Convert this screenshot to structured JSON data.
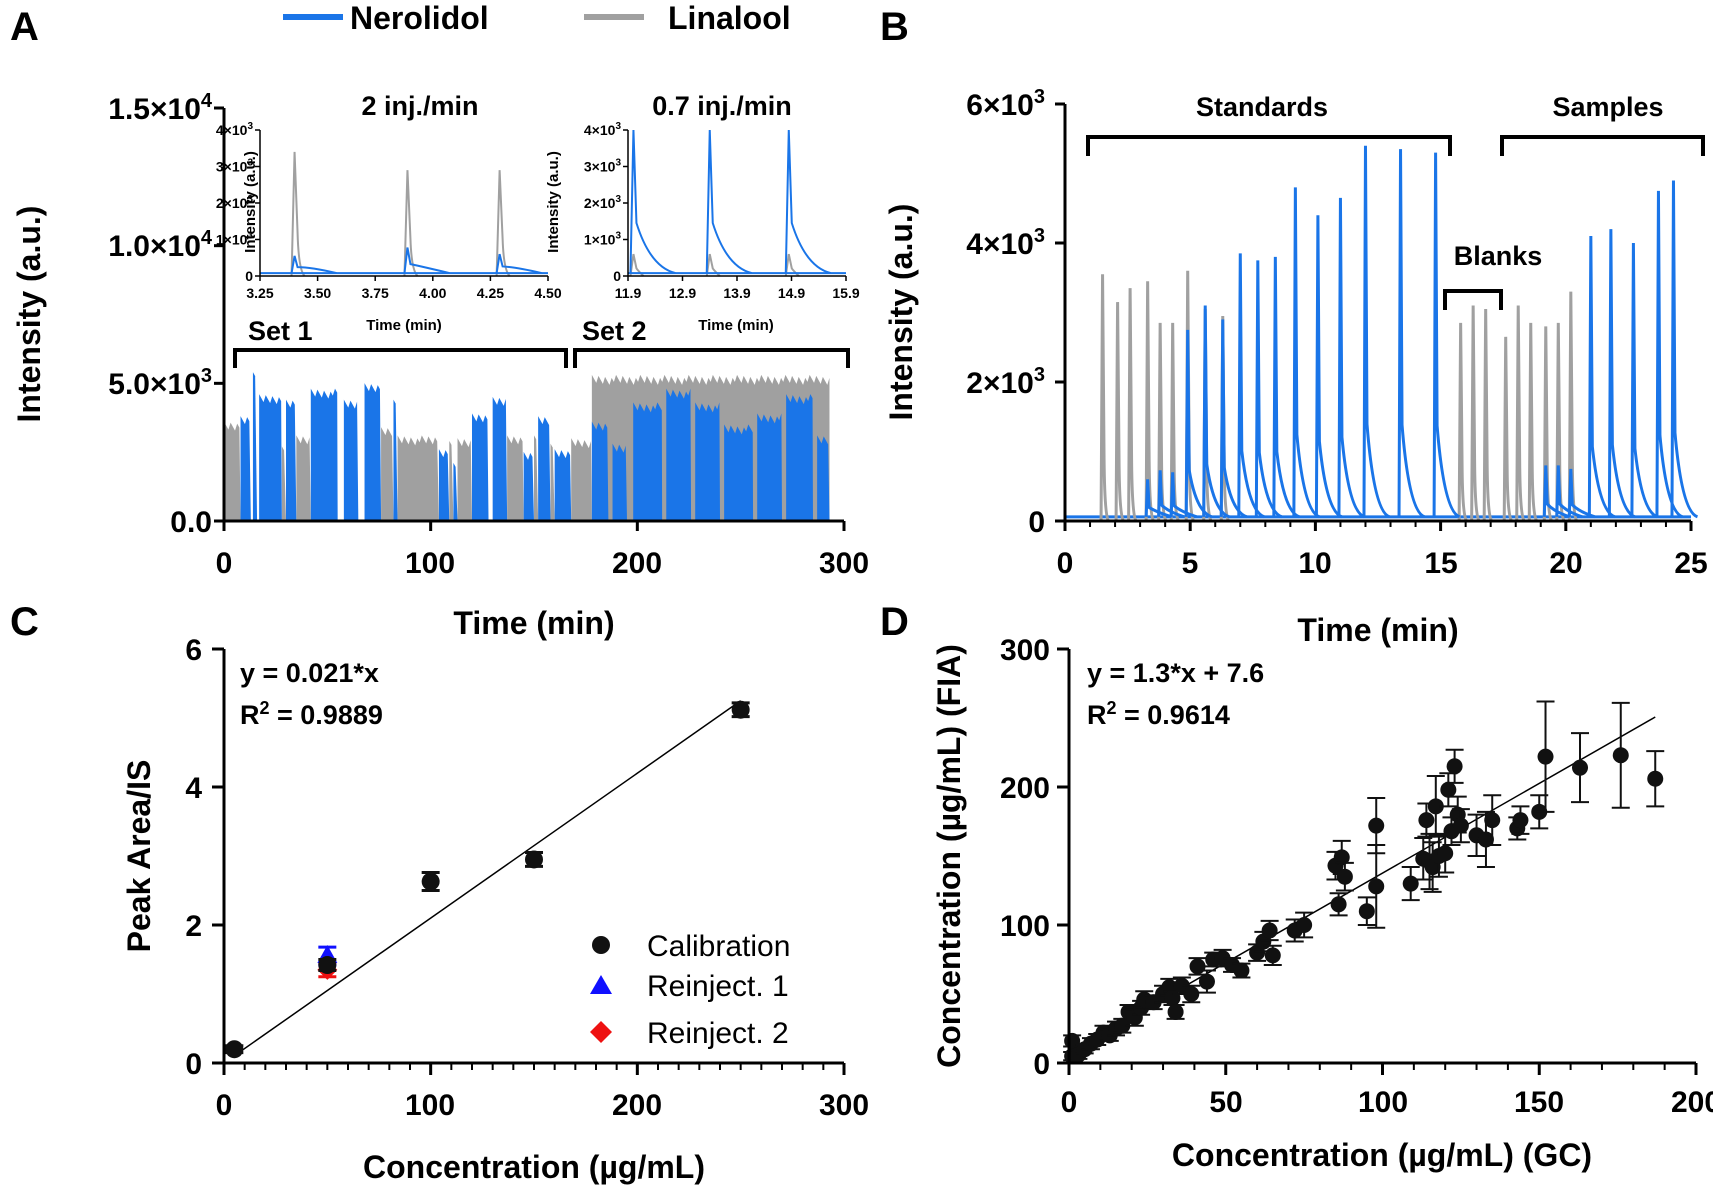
{
  "colors": {
    "nerolidol": "#1a75e8",
    "linalool": "#a0a0a0",
    "calibration": "#111111",
    "reinject1": "#1010ff",
    "reinject2": "#ee1111"
  },
  "top_legend": {
    "series1": "Nerolidol",
    "series2": "Linalool"
  },
  "panels": {
    "A": {
      "label": "A",
      "set1": "Set 1",
      "set2": "Set 2",
      "inset1_title": "2 inj./min",
      "inset2_title": "0.7 inj./min",
      "inset_ylabel": "Intensity (a.u.)",
      "inset_xlabel": "Time (min)"
    },
    "B": {
      "label": "B",
      "standards": "Standards",
      "blanks": "Blanks",
      "samples": "Samples"
    },
    "C": {
      "label": "C",
      "eq": "y = 0.021*x",
      "r2_label": "R",
      "r2_sup": "2",
      "r2_value": " = 0.9889",
      "legend": [
        "Calibration",
        "Reinject. 1",
        "Reinject. 2"
      ]
    },
    "D": {
      "label": "D",
      "eq": "y = 1.3*x + 7.6",
      "r2_label": "R",
      "r2_sup": "2",
      "r2_value": " = 0.9614"
    }
  },
  "chart_data": [
    {
      "id": "A",
      "type": "line",
      "xlabel": "Time (min)",
      "ylabel": "Intensity (a.u.)",
      "xlim": [
        0,
        300
      ],
      "ylim": [
        0,
        15000
      ],
      "xticks": [
        "0",
        "100",
        "200",
        "300"
      ],
      "yticks": [
        "0.0",
        "5.0×10",
        "1.0×10",
        "1.5×10"
      ],
      "ytick_exp": [
        "",
        "3",
        "4",
        "4"
      ],
      "series": [
        {
          "name": "Nerolidol",
          "segments": [
            {
              "x0": 8,
              "x1": 13,
              "y": 3700
            },
            {
              "x0": 14,
              "x1": 16,
              "y": 5300
            },
            {
              "x0": 17,
              "x1": 28,
              "y": 4500
            },
            {
              "x0": 30,
              "x1": 35,
              "y": 4300
            },
            {
              "x0": 42,
              "x1": 55,
              "y": 4700
            },
            {
              "x0": 58,
              "x1": 65,
              "y": 4300
            },
            {
              "x0": 68,
              "x1": 76,
              "y": 4900
            },
            {
              "x0": 82,
              "x1": 84,
              "y": 4300
            },
            {
              "x0": 104,
              "x1": 109,
              "y": 2500
            },
            {
              "x0": 111,
              "x1": 113,
              "y": 2000
            },
            {
              "x0": 120,
              "x1": 128,
              "y": 3800
            },
            {
              "x0": 130,
              "x1": 137,
              "y": 4400
            },
            {
              "x0": 145,
              "x1": 150,
              "y": 2400
            },
            {
              "x0": 152,
              "x1": 158,
              "y": 3700
            },
            {
              "x0": 160,
              "x1": 168,
              "y": 2500
            },
            {
              "x0": 178,
              "x1": 186,
              "y": 3500
            },
            {
              "x0": 188,
              "x1": 195,
              "y": 2700
            },
            {
              "x0": 198,
              "x1": 212,
              "y": 4200
            },
            {
              "x0": 214,
              "x1": 226,
              "y": 4700
            },
            {
              "x0": 228,
              "x1": 240,
              "y": 4200
            },
            {
              "x0": 242,
              "x1": 256,
              "y": 3400
            },
            {
              "x0": 258,
              "x1": 270,
              "y": 3800
            },
            {
              "x0": 272,
              "x1": 285,
              "y": 4500
            },
            {
              "x0": 287,
              "x1": 293,
              "y": 3000
            }
          ]
        },
        {
          "name": "Linalool",
          "segments": [
            {
              "x0": 0,
              "x1": 8,
              "y": 3500
            },
            {
              "x0": 28,
              "x1": 30,
              "y": 2600
            },
            {
              "x0": 35,
              "x1": 42,
              "y": 3000
            },
            {
              "x0": 76,
              "x1": 82,
              "y": 3300
            },
            {
              "x0": 84,
              "x1": 104,
              "y": 3000
            },
            {
              "x0": 109,
              "x1": 111,
              "y": 2800
            },
            {
              "x0": 113,
              "x1": 120,
              "y": 2900
            },
            {
              "x0": 137,
              "x1": 145,
              "y": 3000
            },
            {
              "x0": 150,
              "x1": 152,
              "y": 3000
            },
            {
              "x0": 158,
              "x1": 160,
              "y": 2700
            },
            {
              "x0": 168,
              "x1": 178,
              "y": 2900
            },
            {
              "x0": 178,
              "x1": 293,
              "y": 5200
            }
          ]
        }
      ]
    },
    {
      "id": "A-inset-1",
      "type": "line",
      "title": "2 inj./min",
      "xlabel": "Time (min)",
      "ylabel": "Intensity (a.u.)",
      "xlim": [
        3.25,
        4.5
      ],
      "ylim": [
        0,
        4000
      ],
      "xticks": [
        "3.25",
        "3.50",
        "3.75",
        "4.00",
        "4.25",
        "4.50"
      ],
      "yticks": [
        "0",
        "1×10",
        "2×10",
        "3×10",
        "4×10"
      ],
      "series": [
        {
          "name": "Nerolidol",
          "peaks": [
            {
              "x": 3.4,
              "y": 550
            },
            {
              "x": 3.89,
              "y": 780
            },
            {
              "x": 4.29,
              "y": 600
            }
          ]
        },
        {
          "name": "Linalool",
          "peaks": [
            {
              "x": 3.4,
              "y": 3400
            },
            {
              "x": 3.89,
              "y": 2900
            },
            {
              "x": 4.29,
              "y": 2900
            }
          ]
        }
      ]
    },
    {
      "id": "A-inset-2",
      "type": "line",
      "title": "0.7 inj./min",
      "xlabel": "Time (min)",
      "ylabel": "Intensity (a.u.)",
      "xlim": [
        11.9,
        15.9
      ],
      "ylim": [
        0,
        4000
      ],
      "xticks": [
        "11.9",
        "12.9",
        "13.9",
        "14.9",
        "15.9"
      ],
      "yticks": [
        "0",
        "1×10",
        "2×10",
        "3×10",
        "4×10"
      ],
      "series": [
        {
          "name": "Nerolidol",
          "peaks": [
            {
              "x": 12.0,
              "y": 4000
            },
            {
              "x": 13.4,
              "y": 4000
            },
            {
              "x": 14.85,
              "y": 4000
            }
          ]
        },
        {
          "name": "Linalool",
          "peaks": [
            {
              "x": 12.0,
              "y": 600
            },
            {
              "x": 13.4,
              "y": 600
            },
            {
              "x": 14.85,
              "y": 600
            }
          ]
        }
      ]
    },
    {
      "id": "B",
      "type": "line",
      "xlabel": "Time (min)",
      "ylabel": "Intensity (a.u.)",
      "xlim": [
        0,
        25
      ],
      "ylim": [
        0,
        6000
      ],
      "xticks": [
        "0",
        "5",
        "10",
        "15",
        "20",
        "25"
      ],
      "yticks": [
        "0",
        "2×10",
        "4×10",
        "6×10"
      ],
      "ytick_exp": [
        "",
        "3",
        "3",
        "3"
      ],
      "series": [
        {
          "name": "Linalool",
          "peaks": [
            {
              "x": 1.5,
              "y": 3550
            },
            {
              "x": 2.1,
              "y": 3150
            },
            {
              "x": 2.6,
              "y": 3350
            },
            {
              "x": 3.3,
              "y": 3450
            },
            {
              "x": 3.8,
              "y": 2850
            },
            {
              "x": 4.3,
              "y": 2850
            },
            {
              "x": 4.9,
              "y": 3600
            },
            {
              "x": 5.6,
              "y": 3050
            },
            {
              "x": 6.3,
              "y": 2950
            },
            {
              "x": 15.8,
              "y": 2850
            },
            {
              "x": 16.3,
              "y": 3100
            },
            {
              "x": 16.8,
              "y": 3050
            },
            {
              "x": 17.6,
              "y": 2650
            },
            {
              "x": 18.1,
              "y": 3100
            },
            {
              "x": 18.6,
              "y": 2850
            },
            {
              "x": 19.2,
              "y": 2800
            },
            {
              "x": 19.7,
              "y": 2850
            },
            {
              "x": 20.2,
              "y": 3300
            }
          ]
        },
        {
          "name": "Nerolidol",
          "peaks": [
            {
              "x": 3.3,
              "y": 600
            },
            {
              "x": 3.8,
              "y": 730
            },
            {
              "x": 4.3,
              "y": 700
            },
            {
              "x": 4.9,
              "y": 2750
            },
            {
              "x": 5.6,
              "y": 3100
            },
            {
              "x": 6.3,
              "y": 2900
            },
            {
              "x": 7.0,
              "y": 3850
            },
            {
              "x": 7.7,
              "y": 3750
            },
            {
              "x": 8.4,
              "y": 3800
            },
            {
              "x": 9.2,
              "y": 4800
            },
            {
              "x": 10.1,
              "y": 4400
            },
            {
              "x": 11.0,
              "y": 4650
            },
            {
              "x": 12.0,
              "y": 5400
            },
            {
              "x": 13.4,
              "y": 5350
            },
            {
              "x": 14.8,
              "y": 5300
            },
            {
              "x": 19.2,
              "y": 800
            },
            {
              "x": 19.7,
              "y": 800
            },
            {
              "x": 20.2,
              "y": 750
            },
            {
              "x": 21.0,
              "y": 4100
            },
            {
              "x": 21.8,
              "y": 4200
            },
            {
              "x": 22.7,
              "y": 4000
            },
            {
              "x": 23.7,
              "y": 4750
            },
            {
              "x": 24.3,
              "y": 4900
            }
          ]
        }
      ]
    },
    {
      "id": "C",
      "type": "scatter",
      "xlabel": "Concentration (µg/mL)",
      "ylabel": "Peak Area/IS",
      "xlim": [
        0,
        300
      ],
      "ylim": [
        0,
        6
      ],
      "xticks": [
        "0",
        "100",
        "200",
        "300"
      ],
      "yticks": [
        "0",
        "2",
        "4",
        "6"
      ],
      "fit": {
        "slope": 0.021,
        "intercept": 0,
        "x0": 5,
        "x1": 250
      },
      "series": [
        {
          "name": "Calibration",
          "marker": "circle",
          "points": [
            {
              "x": 5,
              "y": 0.2,
              "err": 0.05
            },
            {
              "x": 50,
              "y": 1.42,
              "err": 0.08
            },
            {
              "x": 100,
              "y": 2.63,
              "err": 0.13
            },
            {
              "x": 150,
              "y": 2.95,
              "err": 0.1
            },
            {
              "x": 250,
              "y": 5.12,
              "err": 0.1
            }
          ]
        },
        {
          "name": "Reinject. 1",
          "marker": "triangle",
          "points": [
            {
              "x": 50,
              "y": 1.55,
              "err": 0.13
            }
          ]
        },
        {
          "name": "Reinject. 2",
          "marker": "diamond",
          "points": [
            {
              "x": 50,
              "y": 1.35,
              "err": 0.1
            }
          ]
        }
      ]
    },
    {
      "id": "D",
      "type": "scatter",
      "xlabel": "Concentration (µg/mL) (GC)",
      "ylabel": "Concentration (µg/mL) (FIA)",
      "xlim": [
        0,
        200
      ],
      "ylim": [
        0,
        300
      ],
      "xticks": [
        "0",
        "50",
        "100",
        "150",
        "200"
      ],
      "yticks": [
        "0",
        "100",
        "200",
        "300"
      ],
      "fit": {
        "slope": 1.3,
        "intercept": 7.6,
        "x0": 0,
        "x1": 187
      },
      "series": [
        {
          "name": "Samples",
          "marker": "circle",
          "points": [
            {
              "x": 1,
              "y": 5,
              "err": 3
            },
            {
              "x": 1,
              "y": 16,
              "err": 4
            },
            {
              "x": 3,
              "y": 6,
              "err": 3
            },
            {
              "x": 5,
              "y": 10,
              "err": 3
            },
            {
              "x": 7,
              "y": 14,
              "err": 4
            },
            {
              "x": 9,
              "y": 17,
              "err": 4
            },
            {
              "x": 11,
              "y": 22,
              "err": 5
            },
            {
              "x": 13,
              "y": 20,
              "err": 4
            },
            {
              "x": 15,
              "y": 25,
              "err": 5
            },
            {
              "x": 17,
              "y": 27,
              "err": 5
            },
            {
              "x": 19,
              "y": 37,
              "err": 5
            },
            {
              "x": 21,
              "y": 33,
              "err": 6
            },
            {
              "x": 23,
              "y": 40,
              "err": 5
            },
            {
              "x": 24,
              "y": 46,
              "err": 6
            },
            {
              "x": 27,
              "y": 44,
              "err": 5
            },
            {
              "x": 30,
              "y": 50,
              "err": 6
            },
            {
              "x": 32,
              "y": 55,
              "err": 6
            },
            {
              "x": 33,
              "y": 47,
              "err": 5
            },
            {
              "x": 34,
              "y": 37,
              "err": 5
            },
            {
              "x": 36,
              "y": 56,
              "err": 6
            },
            {
              "x": 39,
              "y": 50,
              "err": 6
            },
            {
              "x": 41,
              "y": 70,
              "err": 6
            },
            {
              "x": 44,
              "y": 59,
              "err": 8
            },
            {
              "x": 46,
              "y": 75,
              "err": 5
            },
            {
              "x": 49,
              "y": 76,
              "err": 6
            },
            {
              "x": 52,
              "y": 71,
              "err": 5
            },
            {
              "x": 55,
              "y": 67,
              "err": 5
            },
            {
              "x": 60,
              "y": 80,
              "err": 6
            },
            {
              "x": 62,
              "y": 88,
              "err": 7
            },
            {
              "x": 64,
              "y": 96,
              "err": 7
            },
            {
              "x": 65,
              "y": 78,
              "err": 7
            },
            {
              "x": 72,
              "y": 96,
              "err": 8
            },
            {
              "x": 75,
              "y": 100,
              "err": 9
            },
            {
              "x": 85,
              "y": 143,
              "err": 10
            },
            {
              "x": 86,
              "y": 115,
              "err": 8
            },
            {
              "x": 87,
              "y": 149,
              "err": 12
            },
            {
              "x": 88,
              "y": 135,
              "err": 10
            },
            {
              "x": 95,
              "y": 110,
              "err": 10
            },
            {
              "x": 98,
              "y": 172,
              "err": 20
            },
            {
              "x": 98,
              "y": 128,
              "err": 30
            },
            {
              "x": 109,
              "y": 130,
              "err": 12
            },
            {
              "x": 113,
              "y": 148,
              "err": 15
            },
            {
              "x": 114,
              "y": 176,
              "err": 12
            },
            {
              "x": 115,
              "y": 146,
              "err": 20
            },
            {
              "x": 116,
              "y": 142,
              "err": 18
            },
            {
              "x": 117,
              "y": 186,
              "err": 22
            },
            {
              "x": 118,
              "y": 150,
              "err": 15
            },
            {
              "x": 120,
              "y": 152,
              "err": 14
            },
            {
              "x": 121,
              "y": 198,
              "err": 12
            },
            {
              "x": 122,
              "y": 168,
              "err": 10
            },
            {
              "x": 123,
              "y": 215,
              "err": 12
            },
            {
              "x": 124,
              "y": 180,
              "err": 13
            },
            {
              "x": 125,
              "y": 172,
              "err": 12
            },
            {
              "x": 130,
              "y": 165,
              "err": 15
            },
            {
              "x": 133,
              "y": 162,
              "err": 20
            },
            {
              "x": 135,
              "y": 176,
              "err": 18
            },
            {
              "x": 143,
              "y": 170,
              "err": 8
            },
            {
              "x": 144,
              "y": 176,
              "err": 10
            },
            {
              "x": 150,
              "y": 182,
              "err": 12
            },
            {
              "x": 152,
              "y": 222,
              "err": 40
            },
            {
              "x": 163,
              "y": 214,
              "err": 25
            },
            {
              "x": 176,
              "y": 223,
              "err": 38
            },
            {
              "x": 187,
              "y": 206,
              "err": 20
            }
          ]
        }
      ]
    }
  ]
}
